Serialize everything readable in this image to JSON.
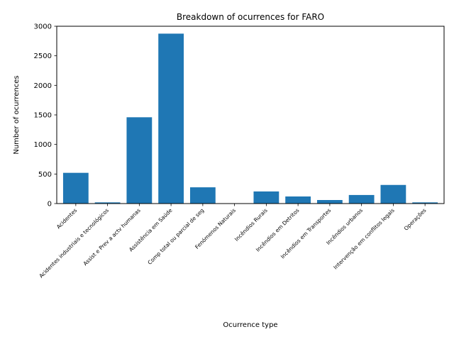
{
  "chart_data": {
    "type": "bar",
    "title": "Breakdown of ocurrences for FARO",
    "xlabel": "Ocurrence type",
    "ylabel": "Number of ocurrences",
    "categories": [
      "Acidentes",
      "Acidentes industriais e tecnológicos",
      "Assist e Prev a actv humanas",
      "Assistência em Saúde",
      "Comp total ou parcial de seg",
      "Fenómenos Naturais",
      "Incêndios Rurais",
      "Incêndios em Detritos",
      "Incêndios em Transportes",
      "Incêndios urbanos",
      "Intervenção em conflitos legais",
      "Operações"
    ],
    "values": [
      520,
      20,
      1460,
      2875,
      275,
      2,
      205,
      120,
      60,
      145,
      315,
      20
    ],
    "ylim": [
      0,
      3000
    ],
    "yticks": [
      0,
      500,
      1000,
      1500,
      2000,
      2500,
      3000
    ],
    "grid": false,
    "bar_color": "#1f77b4"
  }
}
